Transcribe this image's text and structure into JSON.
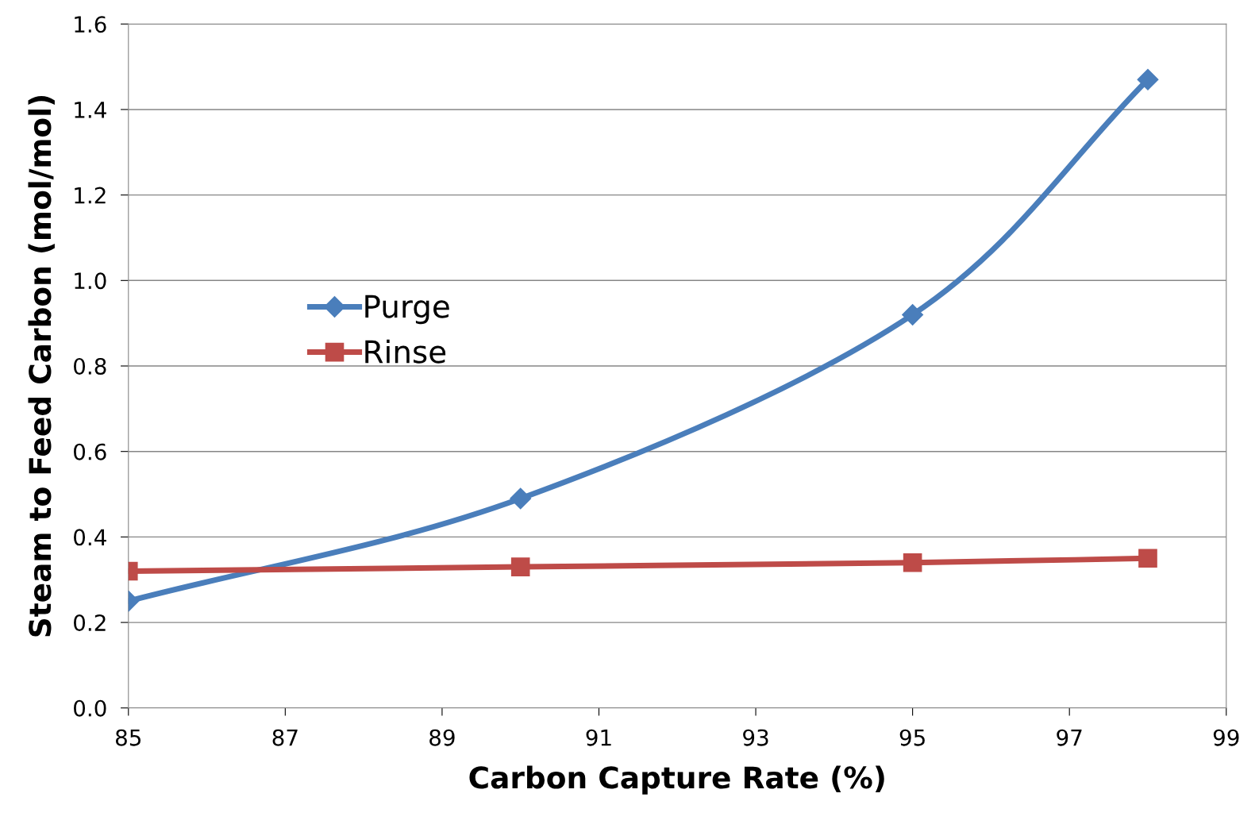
{
  "chart_data": {
    "type": "line",
    "xlabel": "Carbon Capture Rate (%)",
    "ylabel": "Steam to Feed Carbon (mol/mol)",
    "x": [
      85,
      90,
      95,
      98
    ],
    "series": [
      {
        "name": "Purge",
        "color": "#4a7ebb",
        "marker": "diamond",
        "values": [
          0.25,
          0.49,
          0.92,
          1.47
        ]
      },
      {
        "name": "Rinse",
        "color": "#be4b48",
        "marker": "square",
        "values": [
          0.32,
          0.33,
          0.34,
          0.35
        ]
      }
    ],
    "xlim": [
      85,
      99
    ],
    "xticks": [
      85,
      87,
      89,
      91,
      93,
      95,
      97,
      99
    ],
    "ylim": [
      0,
      1.6
    ],
    "yticks": [
      {
        "value": 0,
        "label": "0.0"
      },
      0.2,
      0.4,
      0.6,
      0.8,
      {
        "value": 1.0,
        "label": "1.0"
      },
      1.2,
      1.4,
      1.6
    ],
    "grid": "y",
    "legend": "left",
    "line_style": "solid"
  }
}
